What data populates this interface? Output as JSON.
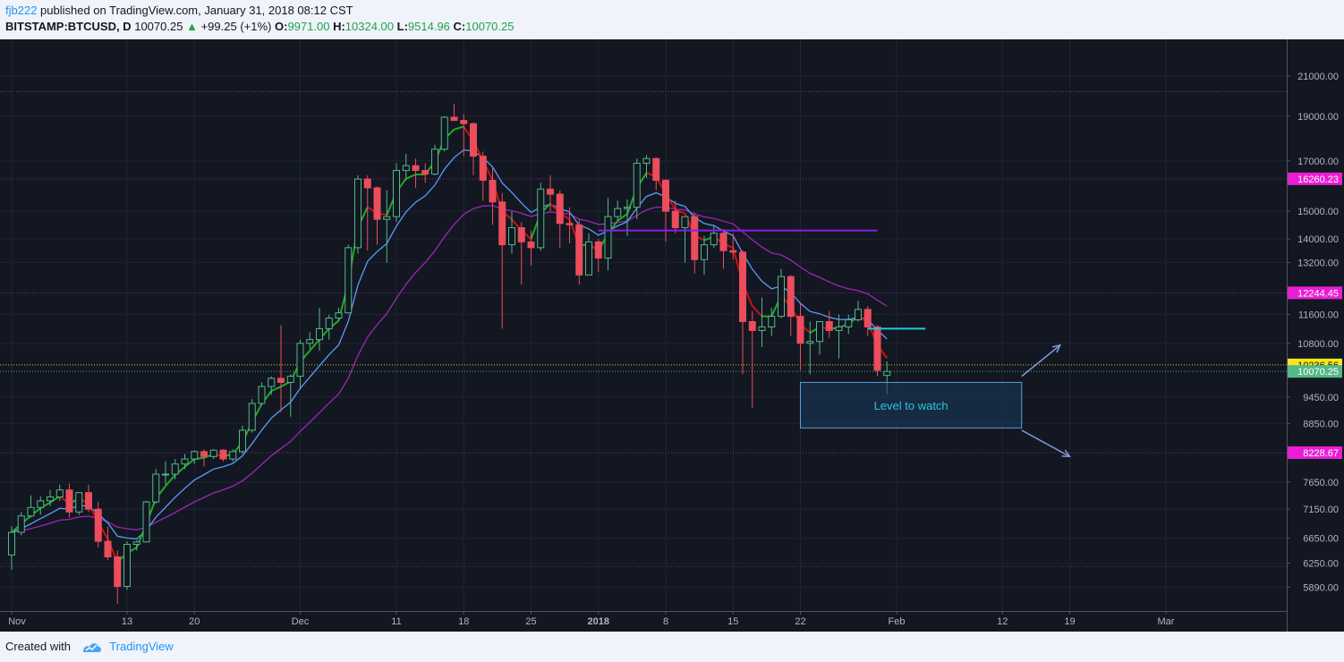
{
  "header": {
    "author": "fjb222",
    "published": " published on TradingView.com, January 31, 2018 08:12 CST",
    "symbol": "BITSTAMP:BTCUSD, D",
    "last": "10070.25",
    "change_arrow": "▲",
    "change": "+99.25 (+1%)",
    "o_label": "O:",
    "o_value": "9971.00",
    "h_label": "H:",
    "h_value": "10324.00",
    "l_label": "L:",
    "l_value": "9514.96",
    "c_label": "C:",
    "c_value": "10070.25"
  },
  "footer": {
    "created_with": "Created with",
    "brand": "TradingView"
  },
  "colors": {
    "background": "#131722",
    "up_candle": "#53b987",
    "down_candle": "#eb4d5c",
    "ema_fast_up": "#22aa22",
    "ema_fast_down": "#cc1111",
    "ema_mid": "#5b9cf6",
    "ema_slow": "#9c27b0",
    "hline": "#9c27b0",
    "resistance": "#8c1bf0",
    "target_line": "#26c6da",
    "label_magenta": "#e91ed4",
    "label_yellow": "#f5e61e",
    "label_green": "#53b987"
  },
  "chart_data": {
    "type": "candlestick",
    "y_scale": "log",
    "ylim": [
      5550,
      23000
    ],
    "y_ticks": [
      21000,
      19000,
      17000,
      15000,
      14000,
      13200,
      11600,
      10800,
      9450,
      8850,
      7650,
      7150,
      6650,
      6250,
      5890
    ],
    "y_tick_labels": [
      "21000.00",
      "19000.00",
      "17000.00",
      "15000.00",
      "14000.00",
      "13200.00",
      "11600.00",
      "10800.00",
      "9450.00",
      "8850.00",
      "7650.00",
      "7150.00",
      "6650.00",
      "6250.00",
      "5890.00"
    ],
    "x_ticks": [
      {
        "date": "2017-11-01",
        "label": "Nov",
        "bold": false
      },
      {
        "date": "2017-11-13",
        "label": "13",
        "bold": false
      },
      {
        "date": "2017-11-20",
        "label": "20",
        "bold": false
      },
      {
        "date": "2017-12-01",
        "label": "Dec",
        "bold": false
      },
      {
        "date": "2017-12-11",
        "label": "11",
        "bold": false
      },
      {
        "date": "2017-12-18",
        "label": "18",
        "bold": false
      },
      {
        "date": "2017-12-25",
        "label": "25",
        "bold": false
      },
      {
        "date": "2018-01-01",
        "label": "2018",
        "bold": true
      },
      {
        "date": "2018-01-08",
        "label": "8",
        "bold": false
      },
      {
        "date": "2018-01-15",
        "label": "15",
        "bold": false
      },
      {
        "date": "2018-01-22",
        "label": "22",
        "bold": false
      },
      {
        "date": "2018-02-01",
        "label": "Feb",
        "bold": false
      },
      {
        "date": "2018-02-12",
        "label": "12",
        "bold": false
      },
      {
        "date": "2018-02-19",
        "label": "19",
        "bold": false
      },
      {
        "date": "2018-03-01",
        "label": "Mar",
        "bold": false
      }
    ],
    "price_labels": [
      {
        "value": 16260.23,
        "text": "16260.23",
        "color": "#e91ed4"
      },
      {
        "value": 12244.45,
        "text": "12244.45",
        "color": "#e91ed4"
      },
      {
        "value": 10236.56,
        "text": "10236.56",
        "color": "#f5e61e"
      },
      {
        "value": 10070.25,
        "text": "10070.25",
        "color": "#53b987"
      },
      {
        "value": 8228.67,
        "text": "8228.67",
        "color": "#e91ed4"
      }
    ],
    "horizontal_levels": [
      20200,
      16260.23,
      12244.45,
      10236.56,
      10070.25,
      8228.67,
      6200
    ],
    "resistance_line": {
      "value": 14300,
      "from": "2018-01-01",
      "to": "2018-01-30"
    },
    "target_line": {
      "value": 11200,
      "from": "2018-01-29",
      "to": "2018-02-04"
    },
    "annotation": {
      "text": "Level to watch",
      "y_top": 9800,
      "y_bottom": 8750,
      "from": "2018-01-22",
      "to": "2018-02-14"
    },
    "arrows": [
      {
        "from": {
          "date": "2018-02-14",
          "value": 9950
        },
        "to": {
          "date": "2018-02-18",
          "value": 10750
        }
      },
      {
        "from": {
          "date": "2018-02-14",
          "value": 8700
        },
        "to": {
          "date": "2018-02-19",
          "value": 8150
        }
      }
    ],
    "candles": [
      [
        "2017-11-01",
        6380,
        6850,
        6150,
        6750
      ],
      [
        "2017-11-02",
        6750,
        7100,
        6700,
        7030
      ],
      [
        "2017-11-03",
        7030,
        7400,
        7000,
        7180
      ],
      [
        "2017-11-04",
        7180,
        7380,
        7050,
        7300
      ],
      [
        "2017-11-05",
        7300,
        7500,
        7200,
        7370
      ],
      [
        "2017-11-06",
        7370,
        7600,
        7300,
        7500
      ],
      [
        "2017-11-07",
        7500,
        7620,
        7000,
        7100
      ],
      [
        "2017-11-08",
        7100,
        7450,
        7050,
        7450
      ],
      [
        "2017-11-09",
        7450,
        7600,
        7100,
        7150
      ],
      [
        "2017-11-10",
        7150,
        7280,
        6500,
        6600
      ],
      [
        "2017-11-11",
        6600,
        6850,
        6300,
        6350
      ],
      [
        "2017-11-12",
        6350,
        6450,
        5650,
        5900
      ],
      [
        "2017-11-13",
        5900,
        6600,
        5850,
        6550
      ],
      [
        "2017-11-14",
        6550,
        6620,
        6450,
        6590
      ],
      [
        "2017-11-15",
        6590,
        7300,
        6580,
        7280
      ],
      [
        "2017-11-16",
        7280,
        7900,
        7250,
        7800
      ],
      [
        "2017-11-17",
        7800,
        8050,
        7600,
        7800
      ],
      [
        "2017-11-18",
        7800,
        8100,
        7700,
        8000
      ],
      [
        "2017-11-19",
        8000,
        8200,
        7900,
        8100
      ],
      [
        "2017-11-20",
        8100,
        8280,
        8000,
        8250
      ],
      [
        "2017-11-21",
        8250,
        8300,
        7950,
        8150
      ],
      [
        "2017-11-22",
        8150,
        8300,
        8100,
        8280
      ],
      [
        "2017-11-23",
        8280,
        8300,
        8050,
        8100
      ],
      [
        "2017-11-24",
        8100,
        8300,
        8050,
        8250
      ],
      [
        "2017-11-25",
        8250,
        8800,
        8200,
        8700
      ],
      [
        "2017-11-26",
        8700,
        9400,
        8650,
        9300
      ],
      [
        "2017-11-27",
        9300,
        9800,
        9250,
        9700
      ],
      [
        "2017-11-28",
        9700,
        9950,
        9500,
        9900
      ],
      [
        "2017-11-29",
        9900,
        11300,
        9100,
        9800
      ],
      [
        "2017-11-30",
        9800,
        10000,
        9000,
        9950
      ],
      [
        "2017-12-01",
        9950,
        10900,
        9650,
        10800
      ],
      [
        "2017-12-02",
        10800,
        11100,
        10650,
        10900
      ],
      [
        "2017-12-03",
        10900,
        11800,
        10600,
        11200
      ],
      [
        "2017-12-04",
        11200,
        11600,
        10900,
        11500
      ],
      [
        "2017-12-05",
        11500,
        11800,
        11400,
        11650
      ],
      [
        "2017-12-06",
        11650,
        13800,
        11650,
        13700
      ],
      [
        "2017-12-07",
        13700,
        16400,
        13500,
        16250
      ],
      [
        "2017-12-08",
        16250,
        16400,
        13600,
        15900
      ],
      [
        "2017-12-09",
        15900,
        15950,
        13800,
        14700
      ],
      [
        "2017-12-10",
        14700,
        15800,
        13200,
        14800
      ],
      [
        "2017-12-11",
        14800,
        16900,
        14600,
        16600
      ],
      [
        "2017-12-12",
        16600,
        17300,
        16200,
        16800
      ],
      [
        "2017-12-13",
        16800,
        17100,
        15900,
        16600
      ],
      [
        "2017-12-14",
        16600,
        16900,
        16100,
        16450
      ],
      [
        "2017-12-15",
        16450,
        17700,
        16400,
        17500
      ],
      [
        "2017-12-16",
        17500,
        19000,
        17400,
        18950
      ],
      [
        "2017-12-17",
        18950,
        19600,
        18800,
        18800
      ],
      [
        "2017-12-18",
        18800,
        19100,
        17200,
        18650
      ],
      [
        "2017-12-19",
        18650,
        18700,
        16400,
        17200
      ],
      [
        "2017-12-20",
        17200,
        17400,
        15400,
        16200
      ],
      [
        "2017-12-21",
        16200,
        16700,
        14500,
        15350
      ],
      [
        "2017-12-22",
        15350,
        15700,
        11200,
        13800
      ],
      [
        "2017-12-23",
        13800,
        15000,
        13500,
        14400
      ],
      [
        "2017-12-24",
        14400,
        14600,
        12500,
        13900
      ],
      [
        "2017-12-25",
        13900,
        14300,
        13100,
        13700
      ],
      [
        "2017-12-26",
        13700,
        16100,
        13600,
        15850
      ],
      [
        "2017-12-27",
        15850,
        16400,
        15000,
        15650
      ],
      [
        "2017-12-28",
        15650,
        15800,
        13700,
        14550
      ],
      [
        "2017-12-29",
        14550,
        15150,
        13850,
        14500
      ],
      [
        "2017-12-30",
        14500,
        14700,
        12500,
        12800
      ],
      [
        "2017-12-31",
        12800,
        14200,
        12800,
        13900
      ],
      [
        "2018-01-01",
        13900,
        14000,
        12900,
        13350
      ],
      [
        "2018-01-02",
        13350,
        15500,
        12950,
        14800
      ],
      [
        "2018-01-03",
        14800,
        15400,
        14650,
        15100
      ],
      [
        "2018-01-04",
        15100,
        15450,
        14100,
        15150
      ],
      [
        "2018-01-05",
        15150,
        17100,
        14700,
        16900
      ],
      [
        "2018-01-06",
        16900,
        17250,
        16300,
        17100
      ],
      [
        "2018-01-07",
        17100,
        17150,
        15800,
        16200
      ],
      [
        "2018-01-08",
        16200,
        16250,
        13900,
        15000
      ],
      [
        "2018-01-09",
        15000,
        15400,
        14200,
        14400
      ],
      [
        "2018-01-10",
        14400,
        14800,
        13200,
        14800
      ],
      [
        "2018-01-11",
        14800,
        14950,
        12850,
        13300
      ],
      [
        "2018-01-12",
        13300,
        14100,
        12800,
        13800
      ],
      [
        "2018-01-13",
        13800,
        14500,
        13700,
        14200
      ],
      [
        "2018-01-14",
        14200,
        14350,
        13000,
        13600
      ],
      [
        "2018-01-15",
        13600,
        14200,
        13300,
        13550
      ],
      [
        "2018-01-16",
        13550,
        13600,
        10000,
        11400
      ],
      [
        "2018-01-17",
        11400,
        11700,
        9200,
        11150
      ],
      [
        "2018-01-18",
        11150,
        12100,
        10700,
        11250
      ],
      [
        "2018-01-19",
        11250,
        11800,
        11000,
        11550
      ],
      [
        "2018-01-20",
        11550,
        13000,
        11500,
        12750
      ],
      [
        "2018-01-21",
        12750,
        12800,
        11000,
        11550
      ],
      [
        "2018-01-22",
        11550,
        11900,
        10100,
        10800
      ],
      [
        "2018-01-23",
        10800,
        11400,
        10000,
        10850
      ],
      [
        "2018-01-24",
        10850,
        11400,
        10500,
        11400
      ],
      [
        "2018-01-25",
        11400,
        11700,
        10950,
        11150
      ],
      [
        "2018-01-26",
        11150,
        11600,
        10400,
        11250
      ],
      [
        "2018-01-27",
        11250,
        11600,
        11050,
        11450
      ],
      [
        "2018-01-28",
        11450,
        12000,
        11400,
        11750
      ],
      [
        "2018-01-29",
        11750,
        11850,
        11000,
        11250
      ],
      [
        "2018-01-30",
        11250,
        11300,
        9950,
        10100
      ],
      [
        "2018-01-31",
        9971,
        10324,
        9514.96,
        10070.25
      ]
    ]
  }
}
